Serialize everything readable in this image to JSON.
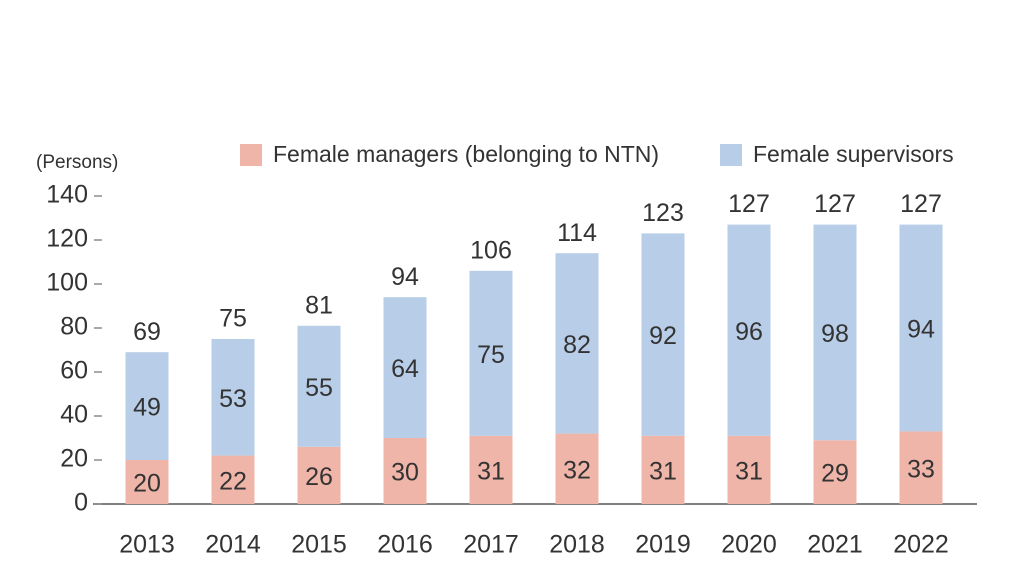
{
  "chart_data": {
    "type": "stacked_bar",
    "y_label": "(Persons)",
    "categories": [
      "2013",
      "2014",
      "2015",
      "2016",
      "2017",
      "2018",
      "2019",
      "2020",
      "2021",
      "2022"
    ],
    "series": [
      {
        "name": "Female managers (belonging to NTN)",
        "color": "#f0b5a9",
        "values": [
          20,
          22,
          26,
          30,
          31,
          32,
          31,
          31,
          29,
          33
        ]
      },
      {
        "name": "Female supervisors",
        "color": "#b8cde7",
        "values": [
          49,
          53,
          55,
          64,
          75,
          82,
          92,
          96,
          98,
          94
        ]
      }
    ],
    "totals": [
      69,
      75,
      81,
      94,
      106,
      114,
      123,
      127,
      127,
      127
    ],
    "ylim": [
      0,
      140
    ],
    "yticks": [
      0,
      20,
      40,
      60,
      80,
      100,
      120,
      140
    ],
    "legend": "top-right"
  }
}
